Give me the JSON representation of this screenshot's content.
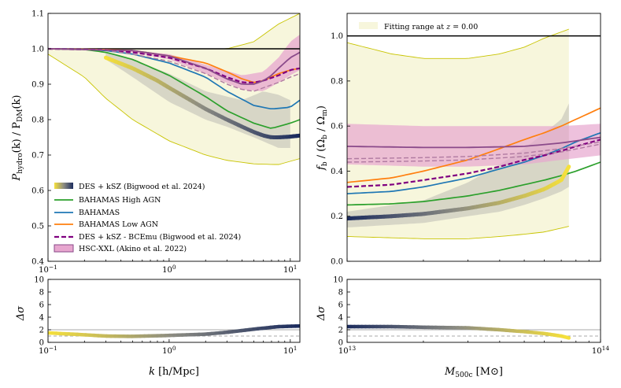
{
  "chart_data": [
    {
      "type": "line",
      "panel": "top-left",
      "xscale": "log",
      "xlim": [
        0.1,
        12
      ],
      "ylim": [
        0.4,
        1.1
      ],
      "xlabel": "",
      "ylabel": "P_hydro(k) / P_DM(k)",
      "ylabel_parts": {
        "pre": "P",
        "sub1": "hydro",
        "mid": "(k) / P",
        "sub2": "DM",
        "post": "(k)"
      },
      "xticks": [
        {
          "v": 0.1,
          "label": "10",
          "exp": "−1"
        },
        {
          "v": 1,
          "label": "10",
          "exp": "0"
        },
        {
          "v": 10,
          "label": "10",
          "exp": "1"
        }
      ],
      "yticks": [
        0.4,
        0.5,
        0.6,
        0.7,
        0.8,
        0.9,
        1.0,
        1.1
      ],
      "ytick_labels": [
        "0.4",
        "0.5",
        "0.6",
        "0.7",
        "0.8",
        "0.9",
        "1.0",
        "1.1"
      ],
      "reference_line": 1.0,
      "fit_band_upper": {
        "x": [
          0.1,
          0.3,
          1,
          3,
          5,
          8,
          12
        ],
        "y": [
          1.0,
          1.0,
          1.0,
          1.0,
          1.02,
          1.07,
          1.1
        ]
      },
      "fit_band_lower": {
        "x": [
          0.1,
          0.2,
          0.3,
          0.5,
          1,
          2,
          3,
          5,
          8,
          12
        ],
        "y": [
          0.985,
          0.92,
          0.86,
          0.8,
          0.74,
          0.7,
          0.685,
          0.675,
          0.673,
          0.69
        ]
      },
      "des_band_upper": {
        "x": [
          0.3,
          0.5,
          1,
          2,
          4,
          6,
          8,
          10
        ],
        "y": [
          0.99,
          0.97,
          0.93,
          0.88,
          0.855,
          0.88,
          0.87,
          0.855
        ]
      },
      "des_band_lower": {
        "x": [
          0.3,
          0.5,
          1,
          2,
          3,
          5,
          8,
          10
        ],
        "y": [
          0.97,
          0.92,
          0.85,
          0.8,
          0.78,
          0.75,
          0.72,
          0.72
        ]
      },
      "hsc_band_upper": {
        "x": [
          0.1,
          0.5,
          1,
          2,
          4,
          6,
          8,
          10,
          12
        ],
        "y": [
          1.0,
          0.995,
          0.985,
          0.955,
          0.925,
          0.935,
          0.975,
          1.02,
          1.04
        ]
      },
      "hsc_band_lower": {
        "x": [
          0.1,
          0.5,
          1,
          2,
          4,
          6,
          8,
          10,
          12
        ],
        "y": [
          1.0,
          0.99,
          0.97,
          0.93,
          0.885,
          0.88,
          0.905,
          0.925,
          0.94
        ]
      },
      "series": [
        {
          "name": "BAHAMAS High AGN",
          "color": "#2ca02c",
          "width": 1.7,
          "x": [
            0.1,
            0.2,
            0.3,
            0.5,
            1,
            2,
            3,
            5,
            7,
            10,
            12
          ],
          "y": [
            1.0,
            0.998,
            0.99,
            0.97,
            0.925,
            0.865,
            0.825,
            0.79,
            0.775,
            0.79,
            0.8
          ]
        },
        {
          "name": "BAHAMAS",
          "color": "#1f77b4",
          "width": 1.7,
          "x": [
            0.1,
            0.2,
            0.3,
            0.5,
            1,
            2,
            3,
            5,
            7,
            10,
            12
          ],
          "y": [
            1.0,
            0.999,
            0.995,
            0.985,
            0.96,
            0.92,
            0.88,
            0.84,
            0.83,
            0.835,
            0.855
          ]
        },
        {
          "name": "BAHAMAS Low AGN",
          "color": "#ff7f0e",
          "width": 1.7,
          "x": [
            0.1,
            0.3,
            0.5,
            1,
            2,
            3,
            4,
            5,
            6,
            8,
            10,
            12
          ],
          "y": [
            1.0,
            0.998,
            0.995,
            0.98,
            0.96,
            0.935,
            0.915,
            0.905,
            0.91,
            0.93,
            0.94,
            0.945
          ]
        },
        {
          "name": "DES + kSZ - BCEmu (Bigwood et al. 2024)",
          "color": "#800080",
          "width": 2.2,
          "dash": "6,3",
          "x": [
            0.1,
            0.3,
            0.5,
            1,
            2,
            3,
            4,
            5,
            6,
            8,
            10,
            12
          ],
          "y": [
            1.0,
            0.997,
            0.99,
            0.975,
            0.945,
            0.92,
            0.905,
            0.905,
            0.91,
            0.925,
            0.94,
            0.945
          ]
        },
        {
          "name": "DES + kSZ - BCEmu (Bigwood et al. 2024) b",
          "color": "#b07aa1",
          "width": 1.4,
          "dash": "6,3",
          "x": [
            0.1,
            0.3,
            0.5,
            1,
            2,
            3,
            4,
            5,
            6,
            8,
            10,
            12
          ],
          "y": [
            1.0,
            0.996,
            0.985,
            0.965,
            0.93,
            0.9,
            0.885,
            0.88,
            0.89,
            0.905,
            0.92,
            0.93
          ]
        },
        {
          "name": "HSC-XXL (Akino et al. 2022)",
          "color": "#8a4a8a",
          "width": 1.8,
          "x": [
            0.1,
            0.5,
            1,
            2,
            3,
            4,
            5,
            6,
            7,
            8,
            10,
            12
          ],
          "y": [
            1.0,
            0.995,
            0.98,
            0.945,
            0.915,
            0.9,
            0.9,
            0.91,
            0.925,
            0.945,
            0.975,
            0.99
          ]
        }
      ],
      "des_ksz": {
        "name": "DES + kSZ (Bigwood et al. 2024)",
        "x": [
          0.3,
          0.5,
          0.8,
          1,
          1.5,
          2,
          3,
          4,
          5,
          6,
          7,
          8,
          10,
          12
        ],
        "y": [
          0.975,
          0.945,
          0.91,
          0.89,
          0.855,
          0.83,
          0.8,
          0.78,
          0.765,
          0.755,
          0.75,
          0.75,
          0.752,
          0.755
        ]
      },
      "legend": {
        "position": "lower-left",
        "entries": [
          "DES + kSZ (Bigwood et al. 2024)",
          "BAHAMAS High AGN",
          "BAHAMAS",
          "BAHAMAS Low AGN",
          "DES + kSZ - BCEmu (Bigwood et al. 2024)",
          "HSC-XXL (Akino et al. 2022)"
        ]
      }
    },
    {
      "type": "line",
      "panel": "top-right",
      "xscale": "log",
      "xlim": [
        10000000000000.0,
        100000000000000.0
      ],
      "ylim": [
        0.0,
        1.1
      ],
      "ylabel": "f_b / (Ω_b / Ω_m)",
      "ylabel_parts": {
        "pre": "f",
        "sub1": "b",
        "mid": " / (Ω",
        "sub2": "b",
        "mid2": " / Ω",
        "sub3": "m",
        "post": ")"
      },
      "yticks": [
        0.0,
        0.2,
        0.4,
        0.6,
        0.8,
        1.0
      ],
      "ytick_labels": [
        "0.0",
        "0.2",
        "0.4",
        "0.6",
        "0.8",
        "1.0"
      ],
      "reference_line": 1.0,
      "legend": {
        "position": "top-left",
        "entries": [
          "Fitting range at z = 0.00"
        ]
      },
      "legend_parts": {
        "text": "Fitting range at ",
        "var": "z",
        "eq": " = 0.00"
      },
      "fit_band_upper": {
        "x": [
          10000000000000.0,
          15000000000000.0,
          20000000000000.0,
          30000000000000.0,
          40000000000000.0,
          50000000000000.0,
          60000000000000.0,
          75000000000000.0
        ],
        "y": [
          0.97,
          0.92,
          0.9,
          0.9,
          0.92,
          0.95,
          0.99,
          1.03
        ]
      },
      "fit_band_lower": {
        "x": [
          10000000000000.0,
          20000000000000.0,
          30000000000000.0,
          40000000000000.0,
          50000000000000.0,
          60000000000000.0,
          75000000000000.0
        ],
        "y": [
          0.11,
          0.1,
          0.1,
          0.11,
          0.12,
          0.13,
          0.155
        ]
      },
      "des_band_upper": {
        "x": [
          10000000000000.0,
          20000000000000.0,
          30000000000000.0,
          40000000000000.0,
          50000000000000.0,
          60000000000000.0,
          70000000000000.0,
          75000000000000.0
        ],
        "y": [
          0.22,
          0.27,
          0.35,
          0.43,
          0.5,
          0.57,
          0.63,
          0.7
        ]
      },
      "des_band_lower": {
        "x": [
          10000000000000.0,
          20000000000000.0,
          30000000000000.0,
          40000000000000.0,
          50000000000000.0,
          60000000000000.0,
          70000000000000.0,
          75000000000000.0
        ],
        "y": [
          0.15,
          0.17,
          0.2,
          0.22,
          0.25,
          0.28,
          0.31,
          0.33
        ]
      },
      "hsc_band_upper": {
        "x": [
          10000000000000.0,
          20000000000000.0,
          30000000000000.0,
          50000000000000.0,
          70000000000000.0,
          100000000000000.0
        ],
        "y": [
          0.61,
          0.6,
          0.6,
          0.6,
          0.6,
          0.61
        ]
      },
      "hsc_band_lower": {
        "x": [
          10000000000000.0,
          20000000000000.0,
          30000000000000.0,
          50000000000000.0,
          70000000000000.0,
          100000000000000.0
        ],
        "y": [
          0.43,
          0.42,
          0.42,
          0.43,
          0.45,
          0.47
        ]
      },
      "series": [
        {
          "name": "BAHAMAS High AGN",
          "color": "#2ca02c",
          "width": 1.7,
          "x": [
            10000000000000.0,
            15000000000000.0,
            20000000000000.0,
            30000000000000.0,
            40000000000000.0,
            50000000000000.0,
            60000000000000.0,
            70000000000000.0,
            80000000000000.0,
            100000000000000.0
          ],
          "y": [
            0.25,
            0.255,
            0.265,
            0.29,
            0.315,
            0.34,
            0.36,
            0.38,
            0.4,
            0.44
          ]
        },
        {
          "name": "BAHAMAS",
          "color": "#1f77b4",
          "width": 1.7,
          "x": [
            10000000000000.0,
            15000000000000.0,
            20000000000000.0,
            30000000000000.0,
            40000000000000.0,
            50000000000000.0,
            60000000000000.0,
            70000000000000.0,
            80000000000000.0,
            100000000000000.0
          ],
          "y": [
            0.3,
            0.31,
            0.33,
            0.37,
            0.41,
            0.44,
            0.47,
            0.5,
            0.53,
            0.57
          ]
        },
        {
          "name": "BAHAMAS Low AGN",
          "color": "#ff7f0e",
          "width": 1.7,
          "x": [
            10000000000000.0,
            15000000000000.0,
            20000000000000.0,
            30000000000000.0,
            40000000000000.0,
            50000000000000.0,
            60000000000000.0,
            70000000000000.0,
            80000000000000.0,
            100000000000000.0
          ],
          "y": [
            0.35,
            0.37,
            0.4,
            0.45,
            0.5,
            0.54,
            0.57,
            0.6,
            0.63,
            0.68
          ]
        },
        {
          "name": "DES + kSZ - BCEmu (Bigwood et al. 2024)",
          "color": "#800080",
          "width": 2.2,
          "dash": "6,3",
          "x": [
            10000000000000.0,
            15000000000000.0,
            20000000000000.0,
            30000000000000.0,
            40000000000000.0,
            50000000000000.0,
            60000000000000.0,
            70000000000000.0,
            80000000000000.0,
            100000000000000.0
          ],
          "y": [
            0.33,
            0.34,
            0.36,
            0.39,
            0.42,
            0.45,
            0.47,
            0.49,
            0.51,
            0.54
          ]
        },
        {
          "name": "HSC-XXL a",
          "color": "#b07aa1",
          "width": 1.4,
          "dash": "6,3",
          "x": [
            10000000000000.0,
            20000000000000.0,
            30000000000000.0,
            50000000000000.0,
            70000000000000.0,
            100000000000000.0
          ],
          "y": [
            0.455,
            0.46,
            0.465,
            0.48,
            0.5,
            0.53
          ]
        },
        {
          "name": "HSC-XXL b",
          "color": "#b07aa1",
          "width": 1.4,
          "dash": "6,3",
          "x": [
            10000000000000.0,
            20000000000000.0,
            30000000000000.0,
            50000000000000.0,
            70000000000000.0,
            100000000000000.0
          ],
          "y": [
            0.44,
            0.445,
            0.45,
            0.465,
            0.485,
            0.52
          ]
        },
        {
          "name": "HSC-XXL (Akino et al. 2022)",
          "color": "#8a4a8a",
          "width": 1.8,
          "x": [
            10000000000000.0,
            20000000000000.0,
            30000000000000.0,
            50000000000000.0,
            70000000000000.0,
            100000000000000.0
          ],
          "y": [
            0.51,
            0.505,
            0.505,
            0.51,
            0.525,
            0.55
          ]
        }
      ],
      "des_ksz": {
        "name": "DES + kSZ (Bigwood et al. 2024)",
        "x": [
          10000000000000.0,
          15000000000000.0,
          20000000000000.0,
          30000000000000.0,
          40000000000000.0,
          50000000000000.0,
          60000000000000.0,
          70000000000000.0,
          75000000000000.0
        ],
        "y": [
          0.19,
          0.2,
          0.21,
          0.235,
          0.26,
          0.29,
          0.32,
          0.36,
          0.42
        ]
      }
    },
    {
      "type": "line",
      "panel": "bottom-left",
      "xscale": "log",
      "xlim": [
        0.1,
        12
      ],
      "ylim": [
        0,
        10
      ],
      "xlabel": "k [h/Mpc]",
      "xlabel_parts": {
        "var": "k",
        "unit": " [h/Mpc]"
      },
      "ylabel": "Δσ",
      "yticks": [
        0,
        2,
        4,
        6,
        8,
        10
      ],
      "ytick_labels": [
        "0",
        "2",
        "4",
        "6",
        "8",
        "10"
      ],
      "xticks": [
        {
          "v": 0.1,
          "label": "10",
          "exp": "−1"
        },
        {
          "v": 1,
          "label": "10",
          "exp": "0"
        },
        {
          "v": 10,
          "label": "10",
          "exp": "1"
        }
      ],
      "hlines": [
        {
          "y": 2,
          "color": "#aaaaaa",
          "dash": ""
        },
        {
          "y": 1,
          "color": "#aaaaaa",
          "dash": "4,3"
        }
      ],
      "des_ksz": {
        "x": [
          0.1,
          0.2,
          0.3,
          0.5,
          1,
          2,
          3,
          5,
          8,
          12
        ],
        "y": [
          1.5,
          1.2,
          1.0,
          0.95,
          1.1,
          1.3,
          1.6,
          2.1,
          2.5,
          2.6
        ]
      }
    },
    {
      "type": "line",
      "panel": "bottom-right",
      "xscale": "log",
      "xlim": [
        10000000000000.0,
        100000000000000.0
      ],
      "ylim": [
        0,
        10
      ],
      "xlabel": "M500c [M⊙]",
      "xlabel_parts": {
        "var": "M",
        "sub": "500c",
        "unit": " [M⊙]"
      },
      "ylabel": "Δσ",
      "yticks": [
        0,
        2,
        4,
        6,
        8,
        10
      ],
      "ytick_labels": [
        "0",
        "2",
        "4",
        "6",
        "8",
        "10"
      ],
      "xticks": [
        {
          "v": 10000000000000.0,
          "label": "10",
          "exp": "13"
        },
        {
          "v": 100000000000000.0,
          "label": "10",
          "exp": "14"
        }
      ],
      "hlines": [
        {
          "y": 2,
          "color": "#aaaaaa",
          "dash": ""
        },
        {
          "y": 1,
          "color": "#aaaaaa",
          "dash": "4,3"
        }
      ],
      "des_ksz": {
        "x": [
          10000000000000.0,
          15000000000000.0,
          20000000000000.0,
          30000000000000.0,
          40000000000000.0,
          50000000000000.0,
          60000000000000.0,
          70000000000000.0,
          75000000000000.0
        ],
        "y": [
          2.5,
          2.5,
          2.4,
          2.3,
          2.0,
          1.7,
          1.4,
          1.0,
          0.7
        ]
      }
    }
  ],
  "colors": {
    "fit_band": "#f7f6dc",
    "fit_band_edge": "#c8c400",
    "des_band": "#d7d6c6",
    "hsc_band": "#e7a6cf",
    "reference": "#000000",
    "gradient_start": "#f5e03c",
    "gradient_mid": "#8c8c82",
    "gradient_end": "#1c2c5e"
  }
}
